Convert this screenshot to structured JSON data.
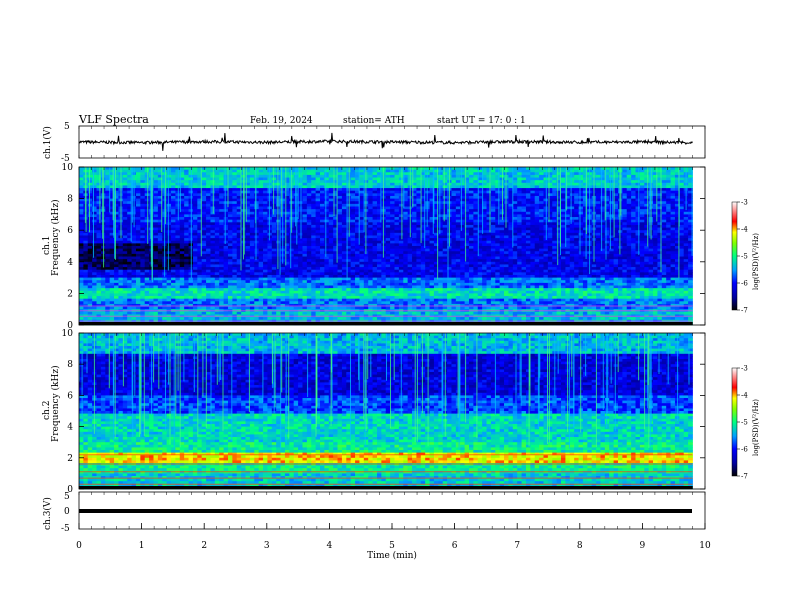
{
  "header": {
    "title": "VLF Spectra",
    "date": "Feb. 19, 2024",
    "station": "station= ATH",
    "start_ut": "start  UT  =    17: 0   : 1"
  },
  "chart_data": [
    {
      "type": "line",
      "panel": "ch1-waveform",
      "ylabel": "ch.1(V)",
      "yticks": [
        "5",
        "-5"
      ],
      "ylim": [
        -5,
        5
      ],
      "x": [
        0,
        1,
        2,
        3,
        4,
        5,
        6,
        7,
        8,
        9,
        9.8
      ],
      "values": [
        0,
        -0.2,
        0.1,
        -0.1,
        0.2,
        0.0,
        -0.2,
        0.1,
        -0.1,
        0.0,
        -0.2
      ],
      "xlim": [
        0,
        10
      ]
    },
    {
      "type": "heatmap",
      "panel": "ch1-spectrogram",
      "ylabel_line1": "ch.1",
      "ylabel_line2": "Frequency (kHz)",
      "yticks": [
        "0",
        "2",
        "4",
        "6",
        "8",
        "10"
      ],
      "ylim": [
        0,
        10
      ],
      "xlim": [
        0,
        10
      ],
      "colorbar_label": "log(PSD)(V²/Hz)",
      "colorbar_ticks": [
        "-3",
        "-4",
        "-5",
        "-6",
        "-7"
      ],
      "clim": [
        -7,
        -3
      ]
    },
    {
      "type": "heatmap",
      "panel": "ch2-spectrogram",
      "ylabel_line1": "ch.2",
      "ylabel_line2": "Frequency (kHz)",
      "yticks": [
        "0",
        "2",
        "4",
        "6",
        "8",
        "10"
      ],
      "ylim": [
        0,
        10
      ],
      "xlim": [
        0,
        10
      ],
      "colorbar_label": "log(PSD)(V²/Hz)",
      "colorbar_ticks": [
        "-3",
        "-4",
        "-5",
        "-6",
        "-7"
      ],
      "clim": [
        -7,
        -3
      ]
    },
    {
      "type": "line",
      "panel": "ch3-waveform",
      "ylabel": "ch.3(V)",
      "yticks": [
        "5",
        "0",
        "-5"
      ],
      "ylim": [
        -5,
        5
      ],
      "x": [
        0,
        9.8
      ],
      "values": [
        0,
        0
      ],
      "xlim": [
        0,
        10
      ],
      "xlabel": "Time  (min)",
      "xticks": [
        "0",
        "1",
        "2",
        "3",
        "4",
        "5",
        "6",
        "7",
        "8",
        "9",
        "10"
      ]
    }
  ]
}
